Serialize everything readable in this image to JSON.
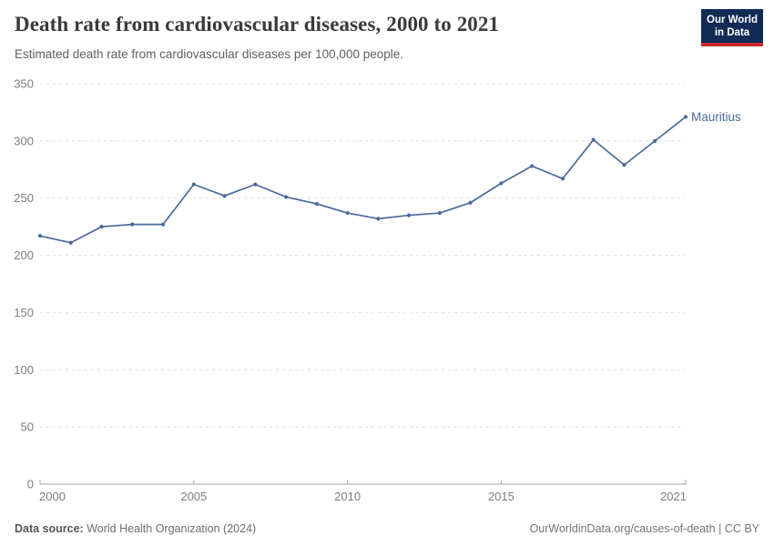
{
  "header": {
    "title": "Death rate from cardiovascular diseases, 2000 to 2021",
    "subtitle": "Estimated death rate from cardiovascular diseases per 100,000 people.",
    "logo": {
      "line1": "Our World",
      "line2": "in Data"
    }
  },
  "chart_data": {
    "type": "line",
    "title": "Death rate from cardiovascular diseases, 2000 to 2021",
    "xlabel": "",
    "ylabel": "Estimated death rate per 100,000 people",
    "xlim": [
      2000,
      2021
    ],
    "ylim": [
      0,
      350
    ],
    "x_ticks": [
      2000,
      2005,
      2010,
      2015,
      2021
    ],
    "y_ticks": [
      0,
      50,
      100,
      150,
      200,
      250,
      300,
      350
    ],
    "grid": "horizontal-dashed",
    "legend_position": "end-of-line-label",
    "series": [
      {
        "name": "Mauritius",
        "color": "#4C6A9C",
        "x": [
          2000,
          2001,
          2002,
          2003,
          2004,
          2005,
          2006,
          2007,
          2008,
          2009,
          2010,
          2011,
          2012,
          2013,
          2014,
          2015,
          2016,
          2017,
          2018,
          2019,
          2020,
          2021
        ],
        "values": [
          217,
          211,
          225,
          227,
          227,
          262,
          252,
          262,
          251,
          245,
          237,
          232,
          235,
          237,
          246,
          263,
          278,
          267,
          301,
          279,
          300,
          321
        ]
      }
    ]
  },
  "footer": {
    "source_label": "Data source:",
    "source_value": " World Health Organization (2024)",
    "credit": "OurWorldinData.org/causes-of-death | CC BY"
  },
  "colors": {
    "accent_line": "#4C6A9C",
    "title_text": "#3a3a3a",
    "subtitle_text": "#5f5f5f",
    "tick_text": "#7d7d7d",
    "gridline": "#e2e2e2",
    "axis": "#a5a5a5",
    "logo_bg": "#112B55",
    "logo_stripe": "#CC2A28"
  }
}
